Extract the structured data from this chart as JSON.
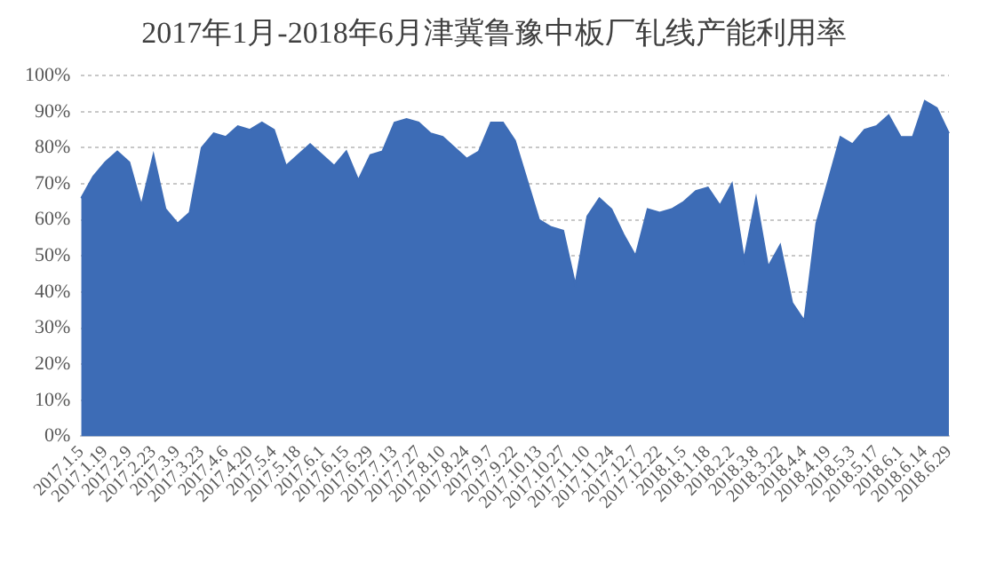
{
  "chart_data": {
    "type": "area",
    "title": "2017年1月-2018年6月津冀鲁豫中板厂轧线产能利用率",
    "categories": [
      "2017.1.5",
      null,
      "2017.1.19",
      null,
      "2017.2.9",
      null,
      "2017.2.23",
      null,
      "2017.3.9",
      null,
      "2017.3.23",
      null,
      "2017.4.6",
      null,
      "2017.4.20",
      null,
      "2017.5.4",
      null,
      "2017.5.18",
      null,
      "2017.6.1",
      null,
      "2017.6.15",
      null,
      "2017.6.29",
      null,
      "2017.7.13",
      null,
      "2017.7.27",
      null,
      "2017.8.10",
      null,
      "2017.8.24",
      null,
      "2017.9.7",
      null,
      "2017.9.22",
      null,
      "2017.10.13",
      null,
      "2017.10.27",
      null,
      "2017.11.10",
      null,
      "2017.11.24",
      null,
      "2017.12.7",
      null,
      "2017.12.22",
      null,
      "2018.1.5",
      null,
      "2018.1.18",
      null,
      "2018.2.2",
      null,
      "2018.3.8",
      null,
      "2018.3.22",
      null,
      "2018.4.4",
      null,
      "2018.4.19",
      null,
      "2018.5.3",
      null,
      "2018.5.17",
      null,
      "2018.6.1",
      null,
      "2018.6.14",
      null,
      "2018.6.29"
    ],
    "series": [
      {
        "color": "#3d6cb6",
        "values": [
          66,
          72,
          76,
          79,
          76,
          64,
          78,
          63,
          59,
          62,
          80,
          84,
          83,
          86,
          85,
          87,
          85,
          75,
          78,
          81,
          78,
          75,
          79,
          71,
          78,
          79,
          87,
          88,
          87,
          84,
          83,
          80,
          77,
          79,
          87,
          87,
          82,
          71,
          60,
          58,
          57,
          42,
          61,
          66,
          63,
          56,
          50,
          63,
          62,
          63,
          65,
          68,
          69,
          64,
          70,
          49,
          66,
          47,
          53,
          37,
          32,
          59,
          71,
          83,
          81,
          85,
          86,
          89,
          83,
          83,
          93,
          91,
          84
        ]
      }
    ],
    "ylim": [
      0,
      100
    ],
    "yticks": [
      {
        "value": 0,
        "label": "0%"
      },
      {
        "value": 10,
        "label": "10%"
      },
      {
        "value": 20,
        "label": "20%"
      },
      {
        "value": 30,
        "label": "30%"
      },
      {
        "value": 40,
        "label": "40%"
      },
      {
        "value": 50,
        "label": "50%"
      },
      {
        "value": 60,
        "label": "60%"
      },
      {
        "value": 70,
        "label": "70%"
      },
      {
        "value": 80,
        "label": "80%"
      },
      {
        "value": 90,
        "label": "90%"
      },
      {
        "value": 100,
        "label": "100%"
      }
    ],
    "grid": "y",
    "legend": false
  }
}
